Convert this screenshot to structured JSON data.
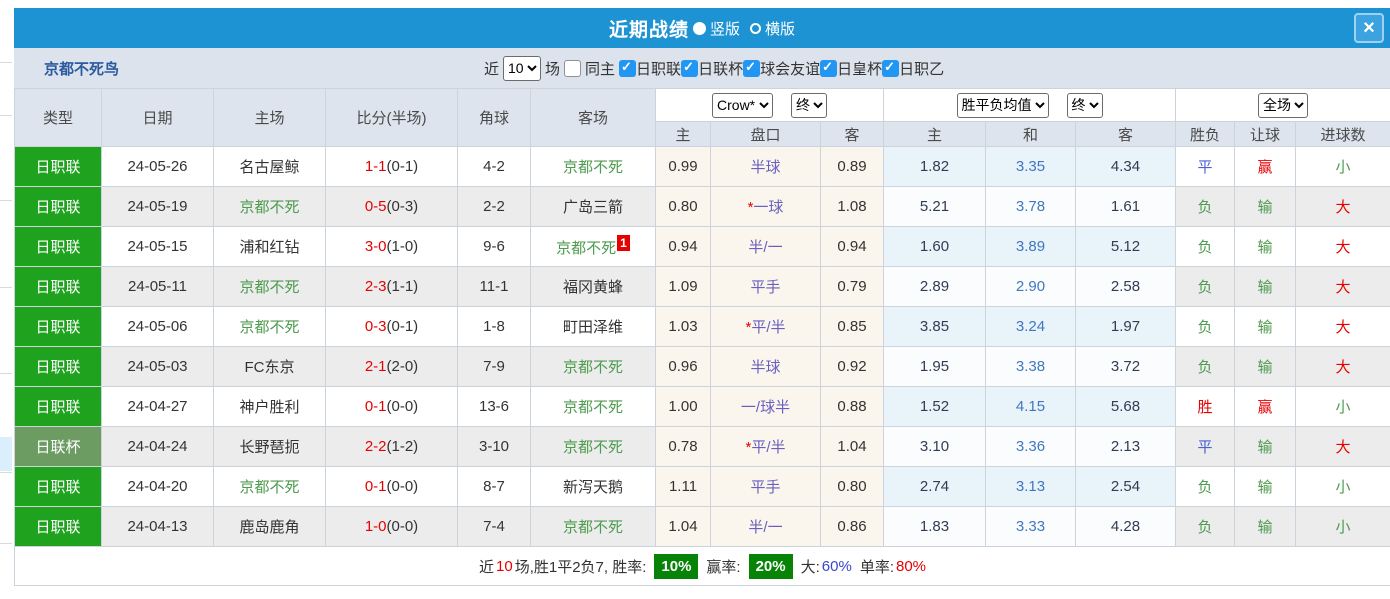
{
  "page": {
    "title": "近期战绩",
    "view_options": [
      {
        "label": "竖版",
        "selected": true
      },
      {
        "label": "横版",
        "selected": false
      }
    ],
    "close_glyph": "×"
  },
  "filter": {
    "team_name": "京都不死鸟",
    "recent_label": "近",
    "recent_value": "10",
    "games_label": "场",
    "same_home_label": "同主",
    "same_home_checked": false,
    "leagues": [
      {
        "label": "日职联",
        "checked": true
      },
      {
        "label": "日联杯",
        "checked": true
      },
      {
        "label": "球会友谊",
        "checked": true
      },
      {
        "label": "日皇杯",
        "checked": true
      },
      {
        "label": "日职乙",
        "checked": true
      }
    ]
  },
  "table": {
    "left_headers": [
      "类型",
      "日期",
      "主场",
      "比分(半场)",
      "角球",
      "客场"
    ],
    "selects": {
      "company": "Crow*",
      "company_stage": "终",
      "mean": "胜平负均值",
      "mean_stage": "终",
      "scope": "全场"
    },
    "sub_headers": [
      "主",
      "盘口",
      "客",
      "主",
      "和",
      "客",
      "胜负",
      "让球",
      "进球数"
    ],
    "rows": [
      {
        "type": "日职联",
        "type_style": "league",
        "date": "24-05-26",
        "home": "名古屋鲸",
        "home_self": false,
        "score_ft": "1-1",
        "score_ht": "(0-1)",
        "corner": "4-2",
        "away": "京都不死",
        "away_self": true,
        "away_badge": null,
        "odds_home": "0.99",
        "handicap_star": false,
        "handicap": "半球",
        "odds_away": "0.89",
        "mean_home": "1.82",
        "mean_draw": "3.35",
        "mean_away": "4.34",
        "result": {
          "t": "平",
          "c": "blue"
        },
        "letball": {
          "t": "赢",
          "c": "red"
        },
        "goals": {
          "t": "小",
          "c": "green"
        }
      },
      {
        "type": "日职联",
        "type_style": "league",
        "date": "24-05-19",
        "home": "京都不死",
        "home_self": true,
        "score_ft": "0-5",
        "score_ht": "(0-3)",
        "corner": "2-2",
        "away": "广岛三箭",
        "away_self": false,
        "away_badge": null,
        "odds_home": "0.80",
        "handicap_star": true,
        "handicap": "一球",
        "odds_away": "1.08",
        "mean_home": "5.21",
        "mean_draw": "3.78",
        "mean_away": "1.61",
        "result": {
          "t": "负",
          "c": "green"
        },
        "letball": {
          "t": "输",
          "c": "green"
        },
        "goals": {
          "t": "大",
          "c": "red"
        }
      },
      {
        "type": "日职联",
        "type_style": "league",
        "date": "24-05-15",
        "home": "浦和红钻",
        "home_self": false,
        "score_ft": "3-0",
        "score_ht": "(1-0)",
        "corner": "9-6",
        "away": "京都不死",
        "away_self": true,
        "away_badge": "1",
        "odds_home": "0.94",
        "handicap_star": false,
        "handicap": "半/一",
        "odds_away": "0.94",
        "mean_home": "1.60",
        "mean_draw": "3.89",
        "mean_away": "5.12",
        "result": {
          "t": "负",
          "c": "green"
        },
        "letball": {
          "t": "输",
          "c": "green"
        },
        "goals": {
          "t": "大",
          "c": "red"
        }
      },
      {
        "type": "日职联",
        "type_style": "league",
        "date": "24-05-11",
        "home": "京都不死",
        "home_self": true,
        "score_ft": "2-3",
        "score_ht": "(1-1)",
        "corner": "11-1",
        "away": "福冈黄蜂",
        "away_self": false,
        "away_badge": null,
        "odds_home": "1.09",
        "handicap_star": false,
        "handicap": "平手",
        "odds_away": "0.79",
        "mean_home": "2.89",
        "mean_draw": "2.90",
        "mean_away": "2.58",
        "result": {
          "t": "负",
          "c": "green"
        },
        "letball": {
          "t": "输",
          "c": "green"
        },
        "goals": {
          "t": "大",
          "c": "red"
        }
      },
      {
        "type": "日职联",
        "type_style": "league",
        "date": "24-05-06",
        "home": "京都不死",
        "home_self": true,
        "score_ft": "0-3",
        "score_ht": "(0-1)",
        "corner": "1-8",
        "away": "町田泽维",
        "away_self": false,
        "away_badge": null,
        "odds_home": "1.03",
        "handicap_star": true,
        "handicap": "平/半",
        "odds_away": "0.85",
        "mean_home": "3.85",
        "mean_draw": "3.24",
        "mean_away": "1.97",
        "result": {
          "t": "负",
          "c": "green"
        },
        "letball": {
          "t": "输",
          "c": "green"
        },
        "goals": {
          "t": "大",
          "c": "red"
        }
      },
      {
        "type": "日职联",
        "type_style": "league",
        "date": "24-05-03",
        "home": "FC东京",
        "home_self": false,
        "score_ft": "2-1",
        "score_ht": "(2-0)",
        "corner": "7-9",
        "away": "京都不死",
        "away_self": true,
        "away_badge": null,
        "odds_home": "0.96",
        "handicap_star": false,
        "handicap": "半球",
        "odds_away": "0.92",
        "mean_home": "1.95",
        "mean_draw": "3.38",
        "mean_away": "3.72",
        "result": {
          "t": "负",
          "c": "green"
        },
        "letball": {
          "t": "输",
          "c": "green"
        },
        "goals": {
          "t": "大",
          "c": "red"
        }
      },
      {
        "type": "日职联",
        "type_style": "league",
        "date": "24-04-27",
        "home": "神户胜利",
        "home_self": false,
        "score_ft": "0-1",
        "score_ht": "(0-0)",
        "corner": "13-6",
        "away": "京都不死",
        "away_self": true,
        "away_badge": null,
        "odds_home": "1.00",
        "handicap_star": false,
        "handicap": "一/球半",
        "odds_away": "0.88",
        "mean_home": "1.52",
        "mean_draw": "4.15",
        "mean_away": "5.68",
        "result": {
          "t": "胜",
          "c": "red"
        },
        "letball": {
          "t": "赢",
          "c": "red"
        },
        "goals": {
          "t": "小",
          "c": "green"
        }
      },
      {
        "type": "日联杯",
        "type_style": "cup",
        "date": "24-04-24",
        "home": "长野琶扼",
        "home_self": false,
        "score_ft": "2-2",
        "score_ht": "(1-2)",
        "corner": "3-10",
        "away": "京都不死",
        "away_self": true,
        "away_badge": null,
        "odds_home": "0.78",
        "handicap_star": true,
        "handicap": "平/半",
        "odds_away": "1.04",
        "mean_home": "3.10",
        "mean_draw": "3.36",
        "mean_away": "2.13",
        "result": {
          "t": "平",
          "c": "blue"
        },
        "letball": {
          "t": "输",
          "c": "green"
        },
        "goals": {
          "t": "大",
          "c": "red"
        }
      },
      {
        "type": "日职联",
        "type_style": "league",
        "date": "24-04-20",
        "home": "京都不死",
        "home_self": true,
        "score_ft": "0-1",
        "score_ht": "(0-0)",
        "corner": "8-7",
        "away": "新泻天鹅",
        "away_self": false,
        "away_badge": null,
        "odds_home": "1.11",
        "handicap_star": false,
        "handicap": "平手",
        "odds_away": "0.80",
        "mean_home": "2.74",
        "mean_draw": "3.13",
        "mean_away": "2.54",
        "result": {
          "t": "负",
          "c": "green"
        },
        "letball": {
          "t": "输",
          "c": "green"
        },
        "goals": {
          "t": "小",
          "c": "green"
        }
      },
      {
        "type": "日职联",
        "type_style": "league",
        "date": "24-04-13",
        "home": "鹿岛鹿角",
        "home_self": false,
        "score_ft": "1-0",
        "score_ht": "(0-0)",
        "corner": "7-4",
        "away": "京都不死",
        "away_self": true,
        "away_badge": null,
        "odds_home": "1.04",
        "handicap_star": false,
        "handicap": "半/一",
        "odds_away": "0.86",
        "mean_home": "1.83",
        "mean_draw": "3.33",
        "mean_away": "4.28",
        "result": {
          "t": "负",
          "c": "green"
        },
        "letball": {
          "t": "输",
          "c": "green"
        },
        "goals": {
          "t": "小",
          "c": "green"
        }
      }
    ]
  },
  "summary": {
    "prefix": "近",
    "count": "10",
    "mid": "场,胜1平2负7, 胜率:",
    "win_rate": "10%",
    "let_label": "赢率:",
    "let_rate": "20%",
    "big_label": "大:",
    "big_rate": "60%",
    "single_label": "单率:",
    "single_rate": "80%"
  },
  "colors": {
    "header_blue": "#1e93d3",
    "league_badge": "#1fa31f",
    "cup_badge": "#6d9c62",
    "red": "#e60000",
    "green": "#4e9a4e",
    "blue": "#4a5fd0",
    "handicap_purple": "#6a5fc0",
    "mean_side": "#2f3d52",
    "mean_draw": "#3f78c0",
    "team_self_green": "#4e9a4e",
    "team_name_blue": "#2b5aa0",
    "checkbox_blue": "#2196f3",
    "rate_green_bg": "#078407",
    "rate_blue": "#3745d0"
  }
}
